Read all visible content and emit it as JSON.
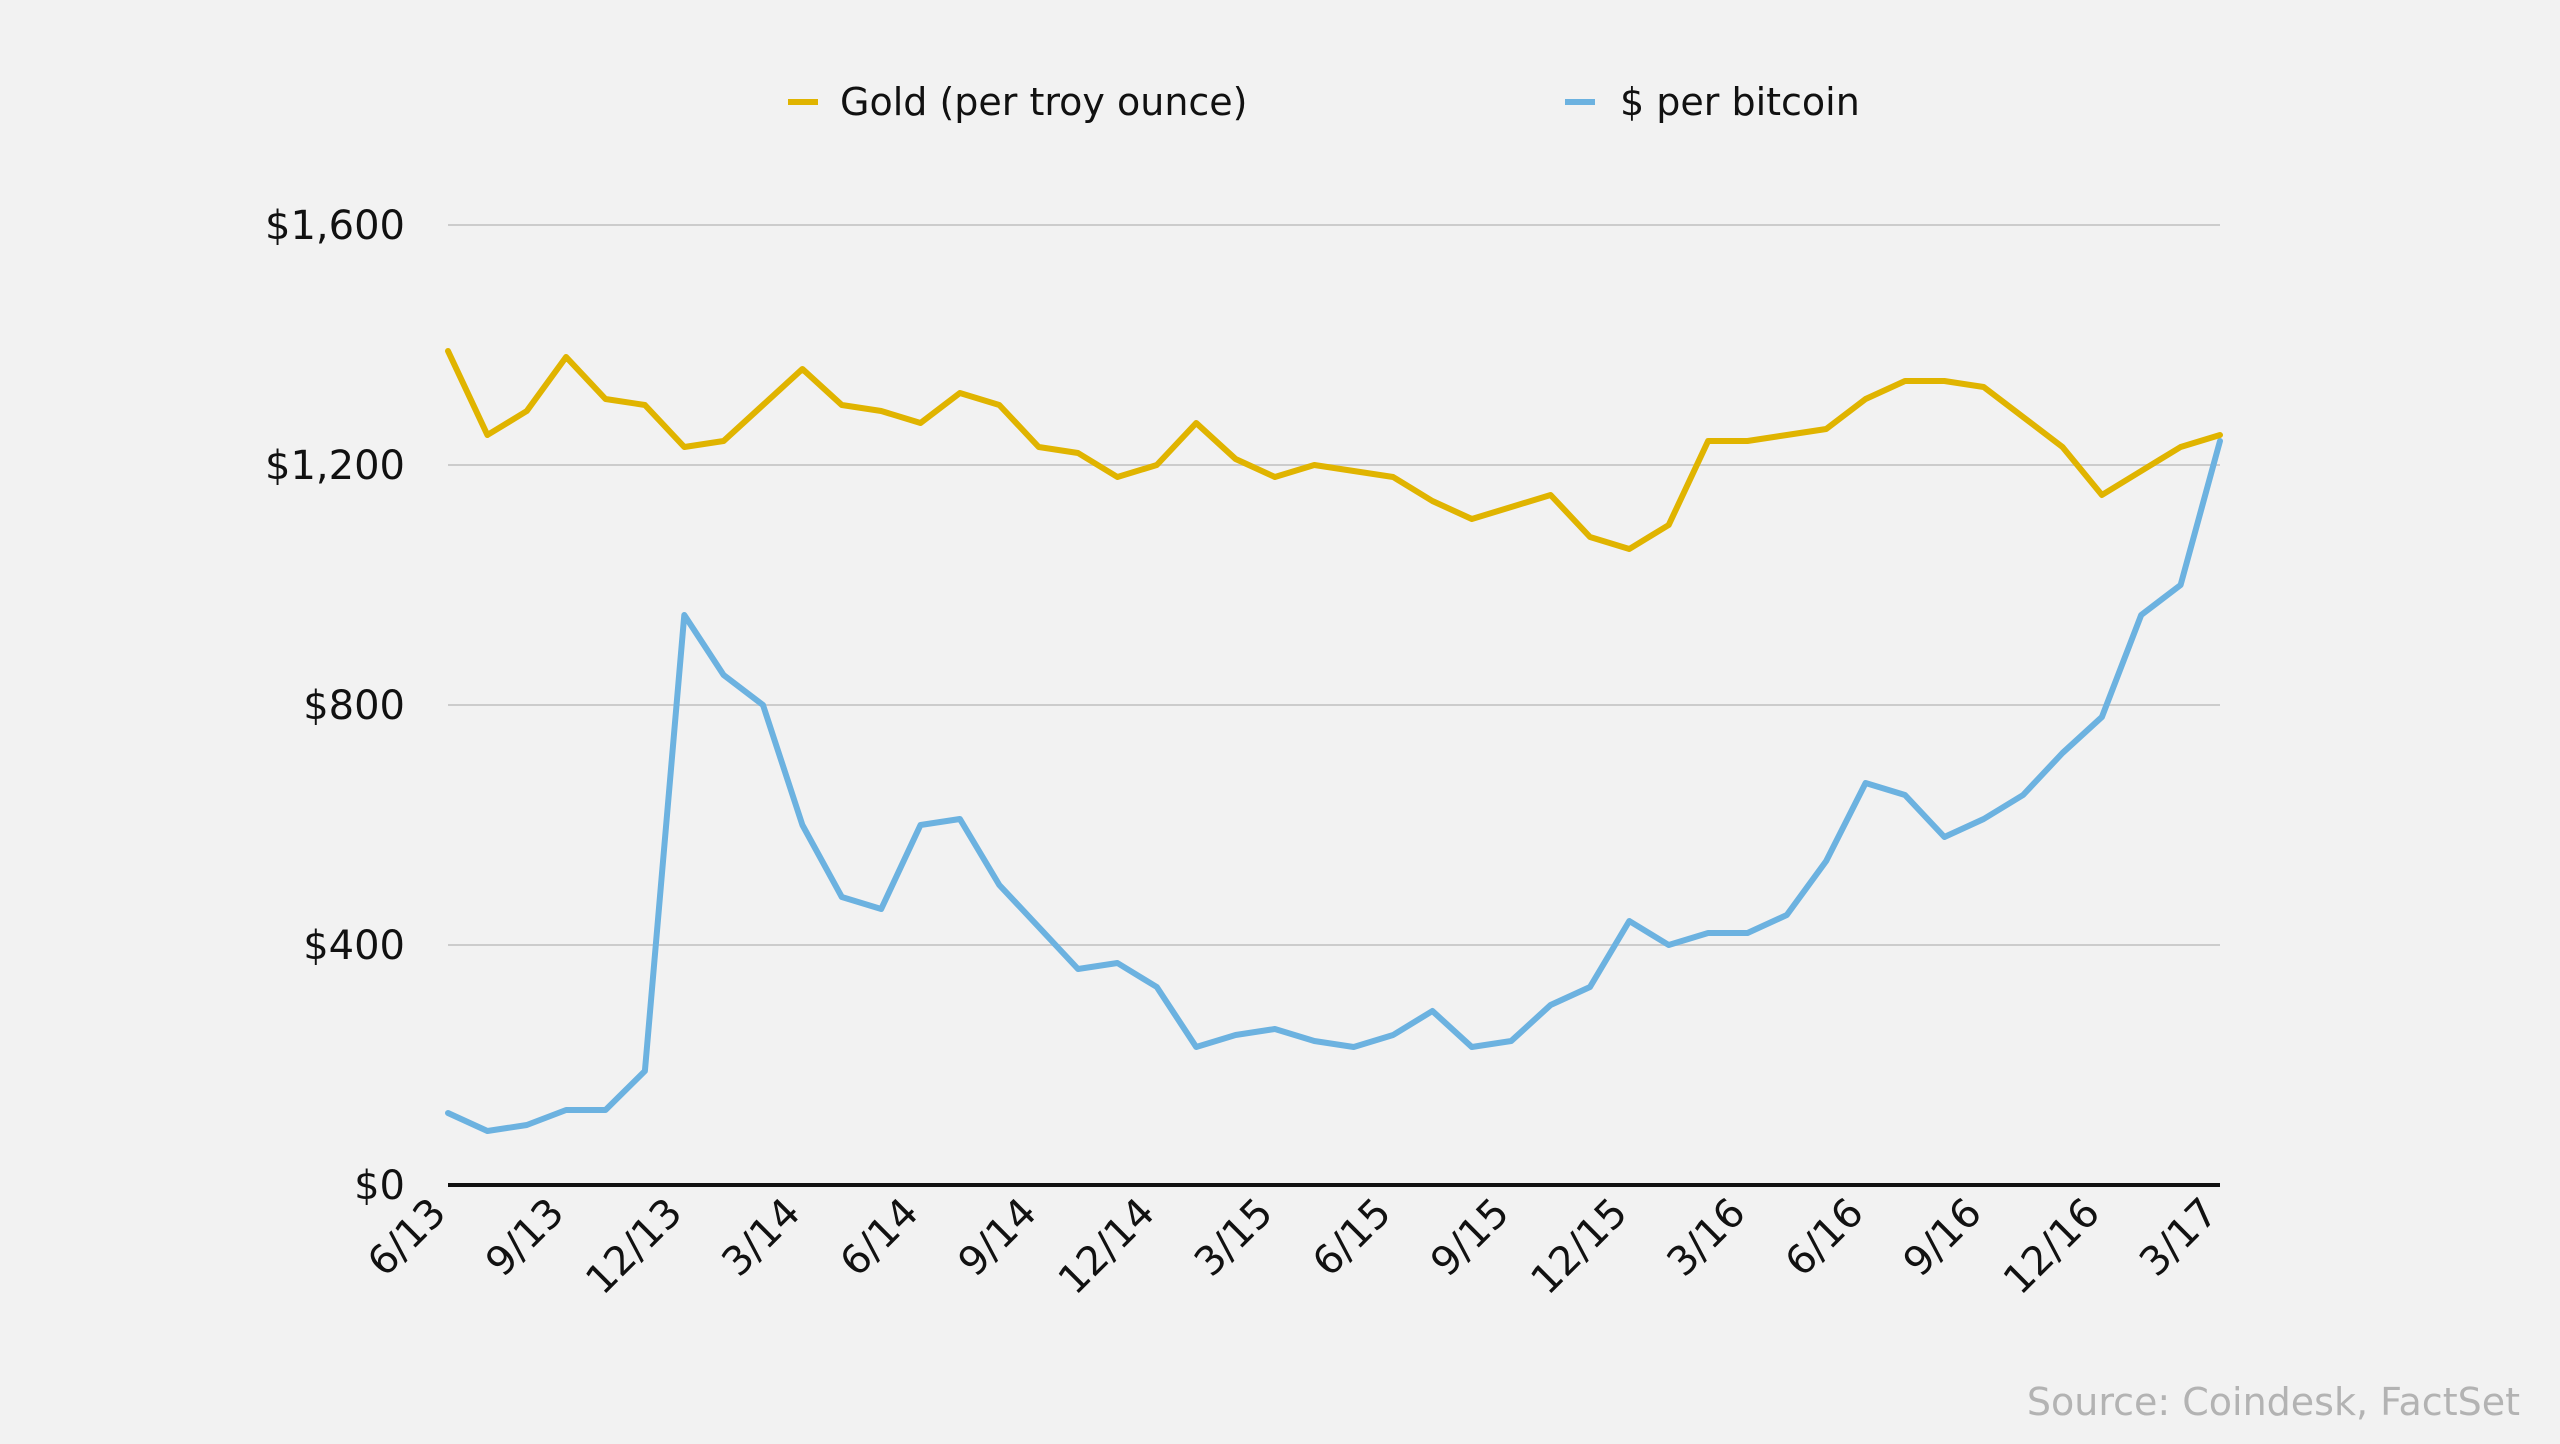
{
  "chart_data": {
    "type": "line",
    "title": "",
    "xlabel": "",
    "ylabel": "",
    "x": [
      "6/13",
      "7/13",
      "8/13",
      "9/13",
      "10/13",
      "11/13",
      "12/13",
      "1/14",
      "2/14",
      "3/14",
      "4/14",
      "5/14",
      "6/14",
      "7/14",
      "8/14",
      "9/14",
      "10/14",
      "11/14",
      "12/14",
      "1/15",
      "2/15",
      "3/15",
      "4/15",
      "5/15",
      "6/15",
      "7/15",
      "8/15",
      "9/15",
      "10/15",
      "11/15",
      "12/15",
      "1/16",
      "2/16",
      "3/16",
      "4/16",
      "5/16",
      "6/16",
      "7/16",
      "8/16",
      "9/16",
      "10/16",
      "11/16",
      "12/16",
      "1/17",
      "2/17",
      "3/17"
    ],
    "xticks": [
      "6/13",
      "9/13",
      "12/13",
      "3/14",
      "6/14",
      "9/14",
      "12/14",
      "3/15",
      "6/15",
      "9/15",
      "12/15",
      "3/16",
      "6/16",
      "9/16",
      "12/16",
      "3/17"
    ],
    "yticks": [
      "$0",
      "$400",
      "$800",
      "$1,200",
      "$1,600"
    ],
    "ylim": [
      0,
      1600
    ],
    "grid": true,
    "legend_position": "top",
    "series": [
      {
        "name": "Gold (per troy ounce)",
        "color": "#e0b400",
        "values": [
          1390,
          1250,
          1290,
          1380,
          1310,
          1300,
          1230,
          1240,
          1300,
          1360,
          1300,
          1290,
          1270,
          1320,
          1300,
          1230,
          1220,
          1180,
          1200,
          1270,
          1210,
          1180,
          1200,
          1190,
          1180,
          1140,
          1110,
          1130,
          1150,
          1080,
          1060,
          1100,
          1240,
          1240,
          1250,
          1260,
          1310,
          1340,
          1340,
          1330,
          1280,
          1230,
          1150,
          1190,
          1230,
          1250
        ]
      },
      {
        "name": "$ per bitcoin",
        "color": "#6cb2e0",
        "values": [
          120,
          90,
          100,
          125,
          125,
          190,
          950,
          850,
          800,
          600,
          480,
          460,
          600,
          610,
          500,
          430,
          360,
          370,
          330,
          230,
          250,
          260,
          240,
          230,
          250,
          290,
          230,
          240,
          300,
          330,
          440,
          400,
          420,
          420,
          450,
          540,
          670,
          650,
          580,
          610,
          650,
          720,
          780,
          950,
          1000,
          1240
        ]
      }
    ]
  },
  "source": "Source: Coindesk, FactSet"
}
